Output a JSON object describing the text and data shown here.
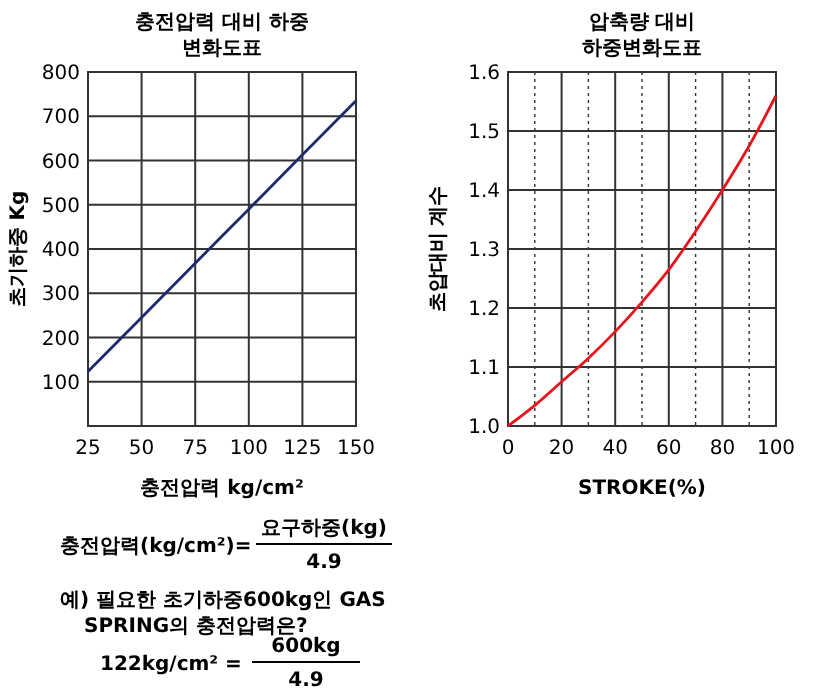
{
  "chart_data": [
    {
      "type": "line",
      "title": "충전압력 대비 하중\n변화도표",
      "xlabel": "충전압력 kg/cm²",
      "ylabel": "초기하중 Kg",
      "x": [
        25,
        50,
        75,
        100,
        125,
        150
      ],
      "series": [
        {
          "color": "#1c2a6e",
          "values": [
            123,
            245,
            368,
            490,
            613,
            735
          ]
        }
      ],
      "xlim": [
        25,
        150
      ],
      "xticks": [
        25,
        50,
        75,
        100,
        125,
        150
      ],
      "ylim": [
        0,
        800
      ],
      "yticks": [
        100,
        200,
        300,
        400,
        500,
        600,
        700,
        800
      ],
      "grid": true,
      "annotations": [
        "충전압력(kg/cm²)=",
        "요구하중(kg)",
        "4.9",
        "예) 필요한 초기하중600kg인 GAS SPRING의 충전압력은?",
        "122kg/cm² =",
        "600kg",
        "4.9"
      ]
    },
    {
      "type": "line",
      "title": "압축량 대비\n하중변화도표",
      "xlabel": "STROKE(%)",
      "ylabel": "초압대비 계수",
      "x": [
        0,
        10,
        20,
        30,
        40,
        50,
        60,
        70,
        80,
        90,
        100
      ],
      "series": [
        {
          "color": "#e8141c",
          "values": [
            1.0,
            1.035,
            1.075,
            1.115,
            1.16,
            1.21,
            1.265,
            1.33,
            1.4,
            1.475,
            1.56
          ]
        }
      ],
      "xlim": [
        0,
        100
      ],
      "xticks": [
        0,
        {
          "value": 10,
          "label": null
        },
        20,
        {
          "value": 30,
          "label": null
        },
        40,
        {
          "value": 50,
          "label": null
        },
        60,
        {
          "value": 70,
          "label": null
        },
        80,
        {
          "value": 90,
          "label": null
        },
        100
      ],
      "ylim": [
        1.0,
        1.6
      ],
      "yticks": [
        {
          "value": 1.0,
          "label": "1.0"
        },
        1.1,
        1.2,
        1.3,
        1.4,
        1.5,
        1.6
      ],
      "grid": true
    }
  ]
}
